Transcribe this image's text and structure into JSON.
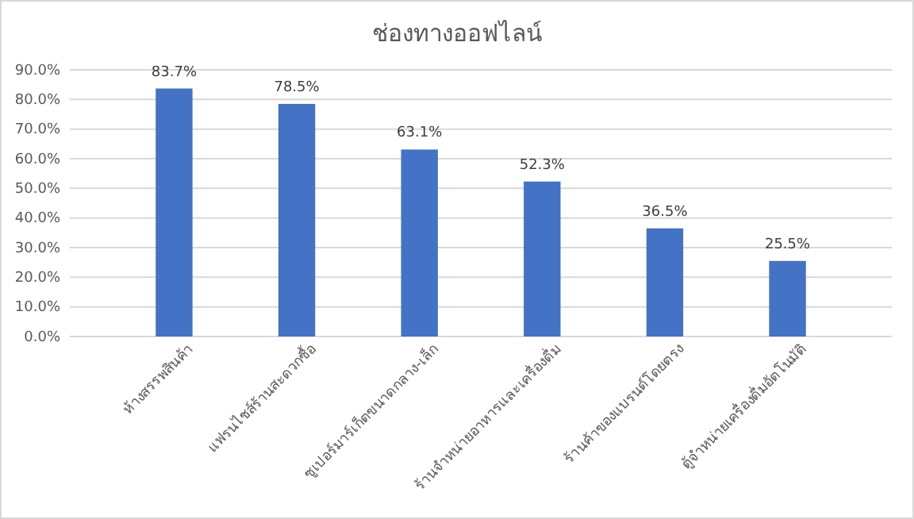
{
  "chart_data": {
    "type": "bar",
    "title": "ช่องทางออฟไลน์",
    "categories": [
      "ห้างสรรพสินค้า",
      "แฟรนไชส์ร้านสะดวกซื้อ",
      "ซูเปอร์มาร์เก็ตขนาดกลาง-เล็ก",
      "ร้านจำหน่ายอาหารและเครื่องดื่ม",
      "ร้านค้าของแบรนด์โดยตรง",
      "ตู้จำหน่ายเครื่องดื่มอัตโนมัติ"
    ],
    "values": [
      83.7,
      78.5,
      63.1,
      52.3,
      36.5,
      25.5
    ],
    "value_labels": [
      "83.7%",
      "78.5%",
      "63.1%",
      "52.3%",
      "36.5%",
      "25.5%"
    ],
    "color": "#4472c4",
    "ylim": [
      0,
      90
    ],
    "yticks": [
      {
        "value": 0,
        "label": "0.0%"
      },
      {
        "value": 10,
        "label": "10.0%"
      },
      {
        "value": 20,
        "label": "20.0%"
      },
      {
        "value": 30,
        "label": "30.0%"
      },
      {
        "value": 40,
        "label": "40.0%"
      },
      {
        "value": 50,
        "label": "50.0%"
      },
      {
        "value": 60,
        "label": "60.0%"
      },
      {
        "value": 70,
        "label": "70.0%"
      },
      {
        "value": 80,
        "label": "80.0%"
      },
      {
        "value": 90,
        "label": "90.0%"
      }
    ],
    "grid": "y"
  }
}
